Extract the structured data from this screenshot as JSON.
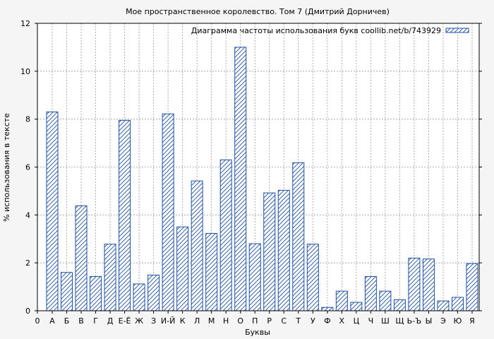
{
  "chart_data": {
    "type": "bar",
    "title": "Мое пространственное королевство. Том 7 (Дмитрий Дорничев)",
    "xlabel": "Буквы",
    "ylabel": "% использования в тексте",
    "legend": "Диаграмма частоты использования букв coollib.net/b/743929",
    "legend_position": "top-right",
    "grid": true,
    "ylim": [
      0,
      12
    ],
    "yticks": [
      "0",
      "2",
      "4",
      "6",
      "8",
      "10",
      "12"
    ],
    "x_origin_label": "0",
    "categories": [
      "А",
      "Б",
      "В",
      "Г",
      "Д",
      "Е-Ё",
      "Ж",
      "З",
      "И-Й",
      "К",
      "Л",
      "М",
      "Н",
      "О",
      "П",
      "Р",
      "С",
      "Т",
      "У",
      "Ф",
      "Х",
      "Ц",
      "Ч",
      "Ш",
      "Щ",
      "Ь-Ъ",
      "Ы",
      "Э",
      "Ю",
      "Я"
    ],
    "values": [
      8.3,
      1.6,
      4.38,
      1.43,
      2.78,
      7.95,
      1.12,
      1.49,
      8.22,
      3.5,
      5.42,
      3.23,
      6.3,
      11.0,
      2.8,
      4.92,
      5.03,
      6.18,
      2.78,
      0.14,
      0.82,
      0.35,
      1.43,
      0.82,
      0.46,
      2.2,
      2.16,
      0.41,
      0.56,
      1.97
    ]
  }
}
